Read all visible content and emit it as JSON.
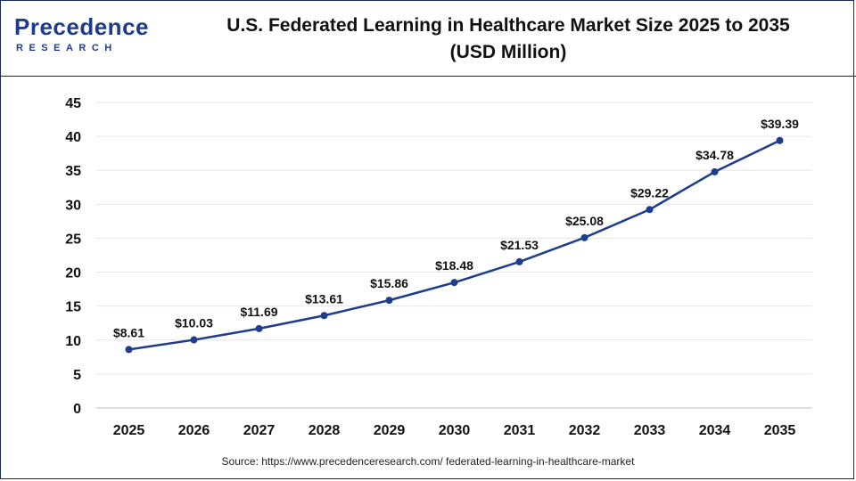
{
  "logo": {
    "word": "Precedence",
    "sub": "RESEARCH"
  },
  "header": {
    "title_line1": "U.S. Federated Learning in Healthcare Market Size 2025 to 2035",
    "title_line2": "(USD Million)"
  },
  "source": "Source: https://www.precedenceresearch.com/ federated-learning-in-healthcare-market",
  "colors": {
    "line": "#1e3c8c",
    "grid": "#e6e6e6",
    "brand": "#1e3c8c"
  },
  "chart_data": {
    "type": "line",
    "title": "U.S. Federated Learning in Healthcare Market Size 2025 to 2035 (USD Million)",
    "categories": [
      "2025",
      "2026",
      "2027",
      "2028",
      "2029",
      "2030",
      "2031",
      "2032",
      "2033",
      "2034",
      "2035"
    ],
    "values": [
      8.61,
      10.03,
      11.69,
      13.61,
      15.86,
      18.48,
      21.53,
      25.08,
      29.22,
      34.78,
      39.39
    ],
    "data_labels": [
      "$8.61",
      "$10.03",
      "$11.69",
      "$13.61",
      "$15.86",
      "$18.48",
      "$21.53",
      "$25.08",
      "$29.22",
      "$34.78",
      "$39.39"
    ],
    "yticks": [
      0,
      5,
      10,
      15,
      20,
      25,
      30,
      35,
      40,
      45
    ],
    "ylim": [
      0,
      45
    ],
    "xlabel": "",
    "ylabel": "",
    "grid": true,
    "legend": "none"
  }
}
